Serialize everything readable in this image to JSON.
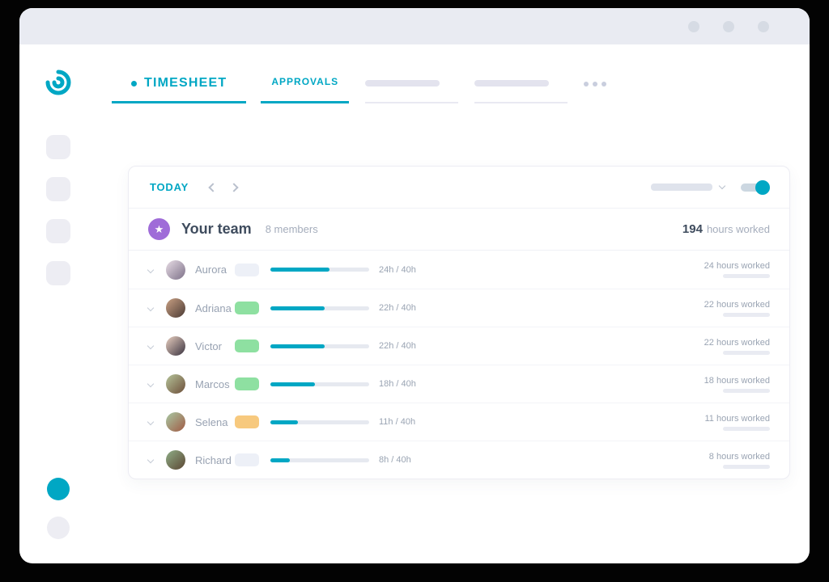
{
  "colors": {
    "accent": "#00a7c4",
    "team_icon_purple": "#9f6cd8",
    "badge_green": "#8ee0a1",
    "badge_yellow": "#f7c97e",
    "badge_neutral": "#edf0f7"
  },
  "icons": {
    "star": "★"
  },
  "nav": {
    "tabs": [
      {
        "label": "TIMESHEET"
      },
      {
        "label": "APPROVALS"
      }
    ]
  },
  "card": {
    "today": "TODAY",
    "team_title": "Your team",
    "team_members": "8 members",
    "team_total": "194",
    "team_total_suffix": "hours worked"
  },
  "members": [
    {
      "name": "Aurora",
      "hours": "24h / 40h",
      "worked": "24 hours worked",
      "progress_pct": 60,
      "badge_color": "#edf0f7",
      "avatar_colors": [
        "#e8dde6",
        "#7d7188"
      ]
    },
    {
      "name": "Adriana",
      "hours": "22h / 40h",
      "worked": "22 hours worked",
      "progress_pct": 55,
      "badge_color": "#8ee0a1",
      "avatar_colors": [
        "#caa184",
        "#4a3a34"
      ]
    },
    {
      "name": "Victor",
      "hours": "22h / 40h",
      "worked": "22 hours worked",
      "progress_pct": 55,
      "badge_color": "#8ee0a1",
      "avatar_colors": [
        "#e9cfc0",
        "#3a3340"
      ]
    },
    {
      "name": "Marcos",
      "hours": "18h / 40h",
      "worked": "18 hours worked",
      "progress_pct": 45,
      "badge_color": "#8ee0a1",
      "avatar_colors": [
        "#b5c49a",
        "#6e4f3a"
      ]
    },
    {
      "name": "Selena",
      "hours": "11h / 40h",
      "worked": "11 hours worked",
      "progress_pct": 27.5,
      "badge_color": "#f7c97e",
      "avatar_colors": [
        "#a8c9a5",
        "#a05a43"
      ]
    },
    {
      "name": "Richard",
      "hours": "8h / 40h",
      "worked": "8 hours worked",
      "progress_pct": 20,
      "badge_color": "#edf0f7",
      "avatar_colors": [
        "#8fae87",
        "#5b4633"
      ]
    }
  ]
}
